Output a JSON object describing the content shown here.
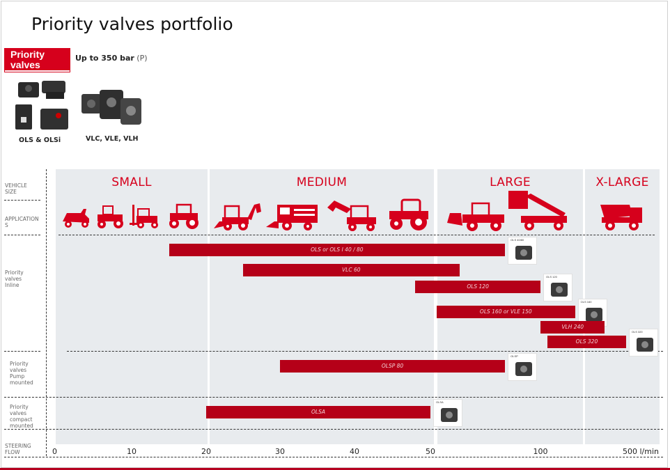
{
  "title": "Priority valves portfolio",
  "badge": "Priority valves",
  "pressure": {
    "text": "Up to 350 bar",
    "unit": "(P)"
  },
  "products": [
    {
      "label": "OLS & OLSi"
    },
    {
      "label": "VLC, VLE, VLH"
    }
  ],
  "row_labels": {
    "vehicle_size": "VEHICLE SIZE",
    "applications": "APPLICATION S",
    "inline": "Priority valves Inline",
    "pump": "Priority valves Pump mounted",
    "compact": "Priority valves compact mounted",
    "steering": "STEERING FLOW"
  },
  "vehicle_sizes": [
    "SMALL",
    "MEDIUM",
    "LARGE",
    "X-LARGE"
  ],
  "vehicle_icons": [
    "lawn-mower-icon",
    "compact-tractor-icon",
    "forklift-icon",
    "small-tractor-icon",
    "backhoe-loader-icon",
    "combine-harvester-icon",
    "excavator-icon",
    "large-tractor-icon",
    "wheel-loader-icon",
    "telehandler-icon",
    "dump-truck-icon"
  ],
  "colors": {
    "accent": "#d6001c",
    "bar": "#b50018",
    "band": "#e8ebee"
  },
  "chart_data": {
    "type": "bar",
    "orientation": "horizontal-range",
    "xlabel": "STEERING FLOW",
    "x_unit": "l/min",
    "x_ticks": [
      {
        "value": 0,
        "label": "0"
      },
      {
        "value": 10,
        "label": "10"
      },
      {
        "value": 20,
        "label": "20"
      },
      {
        "value": 30,
        "label": "30"
      },
      {
        "value": 40,
        "label": "40"
      },
      {
        "value": 50,
        "label": "50"
      },
      {
        "value": 100,
        "label": "100"
      },
      {
        "value": 500,
        "label": "500 l/min"
      }
    ],
    "series": [
      {
        "name": "OLS or OLS I 40 / 80",
        "group": "inline",
        "thumb": "OLS 40/80",
        "start": 15,
        "end": 80
      },
      {
        "name": "VLC 60",
        "group": "inline",
        "thumb": "",
        "start": 25,
        "end": 60
      },
      {
        "name": "OLS 120",
        "group": "inline",
        "thumb": "OLS 120",
        "start": 48,
        "end": 100
      },
      {
        "name": "OLS 160 or VLE 150",
        "group": "inline",
        "thumb": "OLS 160",
        "start": 52,
        "end": 160
      },
      {
        "name": "VLH 240",
        "group": "inline",
        "thumb": "",
        "start": 100,
        "end": 240
      },
      {
        "name": "OLS 320",
        "group": "inline",
        "thumb": "OLS 320",
        "start": 110,
        "end": 320
      },
      {
        "name": "OLSP 80",
        "group": "pump",
        "thumb": "OLSP",
        "start": 30,
        "end": 80
      },
      {
        "name": "OLSA",
        "group": "compact",
        "thumb": "OLSA",
        "start": 20,
        "end": 50
      }
    ]
  }
}
